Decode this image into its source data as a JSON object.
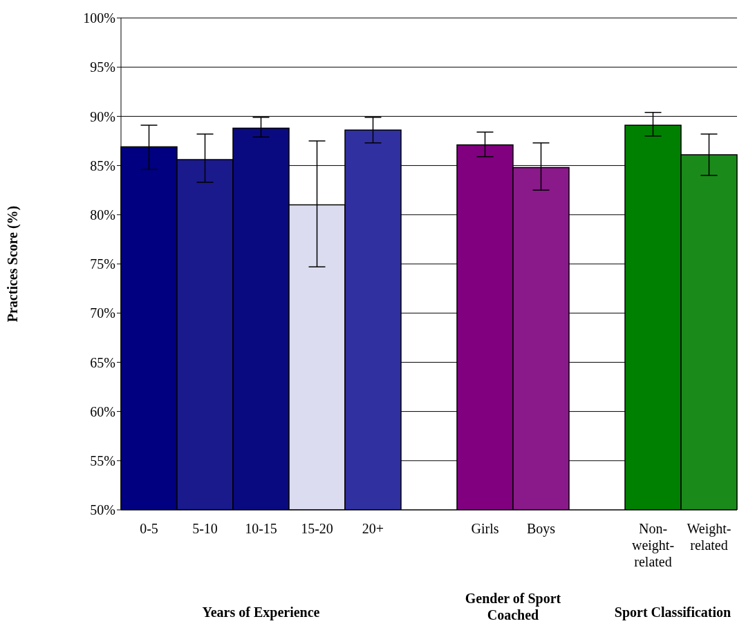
{
  "chart_data": {
    "type": "bar",
    "ylabel": "Practices Score (%)",
    "categories": [
      "0-5",
      "5-10",
      "10-15",
      "15-20",
      "20+",
      null,
      "Girls",
      "Boys",
      null,
      "Non-weight-related",
      "Weight-related"
    ],
    "values": [
      86.9,
      85.6,
      88.8,
      81.0,
      88.6,
      null,
      87.1,
      84.8,
      null,
      89.1,
      86.1
    ],
    "colors": [
      "#000080",
      "#1a1a8c",
      "#0a0a80",
      "#dcdcf0",
      "#3030a0",
      "#ffffff",
      "#800080",
      "#8a1a8a",
      "#ffffff",
      "#008000",
      "#1a8a1a"
    ],
    "errors": [
      [
        84.6,
        89.1
      ],
      [
        83.3,
        88.2
      ],
      [
        87.9,
        89.9
      ],
      [
        74.7,
        87.5
      ],
      [
        87.3,
        89.9
      ],
      null,
      [
        85.9,
        88.4
      ],
      [
        82.5,
        87.3
      ],
      null,
      [
        88.0,
        90.4
      ],
      [
        84.0,
        88.2
      ]
    ],
    "ylim": [
      50,
      100
    ],
    "yticks": [
      {
        "value": 50,
        "label": "50%"
      },
      {
        "value": 55,
        "label": "55%"
      },
      {
        "value": 60,
        "label": "60%"
      },
      {
        "value": 65,
        "label": "65%"
      },
      {
        "value": 70,
        "label": "70%"
      },
      {
        "value": 75,
        "label": "75%"
      },
      {
        "value": 80,
        "label": "80%"
      },
      {
        "value": 85,
        "label": "85%"
      },
      {
        "value": 90,
        "label": "90%"
      },
      {
        "value": 95,
        "label": "95%"
      },
      {
        "value": 100,
        "label": "100%"
      }
    ],
    "grid": "y",
    "annotations": [
      "Years of Experience",
      "Gender of Sport Coached",
      "Sport Classification"
    ]
  }
}
